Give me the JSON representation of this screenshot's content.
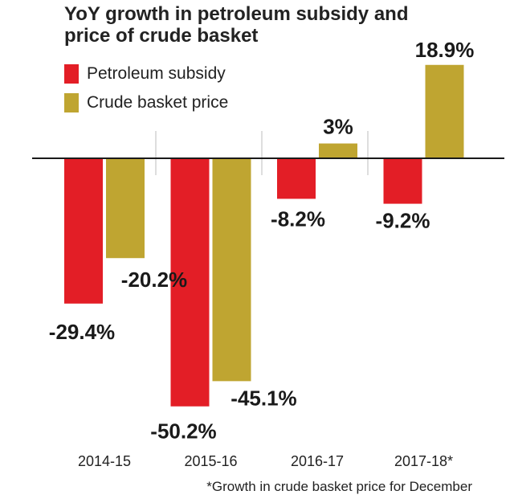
{
  "chart_data": {
    "type": "bar",
    "title": "YoY growth in petroleum subsidy and price of crude basket",
    "categories": [
      "2014-15",
      "2015-16",
      "2016-17",
      "2017-18*"
    ],
    "series": [
      {
        "name": "Petroleum subsidy",
        "color": "#e31e26",
        "values": [
          -29.4,
          -50.2,
          -8.2,
          -9.2
        ],
        "labels": [
          "-29.4%",
          "-50.2%",
          "-8.2%",
          "-9.2%"
        ]
      },
      {
        "name": "Crude basket price",
        "color": "#bfa531",
        "values": [
          -20.2,
          -45.1,
          3,
          18.9
        ],
        "labels": [
          "-20.2%",
          "-45.1%",
          "3%",
          "18.9%"
        ]
      }
    ],
    "xlabel": "",
    "ylabel": "",
    "ylim": [
      -50.2,
      18.9
    ],
    "grid": false,
    "legend": "top-left",
    "footnote": "*Growth in crude basket price for December"
  }
}
